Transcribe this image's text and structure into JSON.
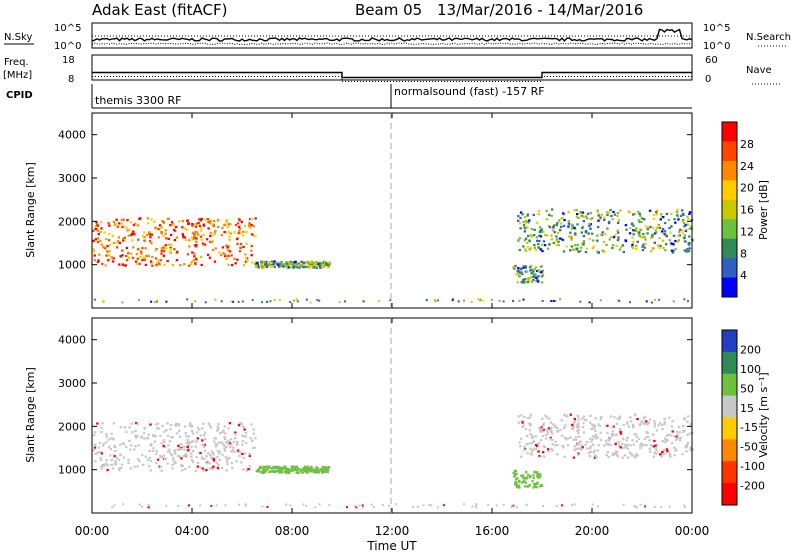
{
  "header": {
    "station": "Adak East (fitACF)",
    "beam": "Beam 05",
    "dates": "13/Mar/2016 - 14/Mar/2016"
  },
  "noise_panel": {
    "left_label": "N.Sky",
    "right_label": "N.Search",
    "y_top_tick": "10^5",
    "y_bottom_tick": "10^0"
  },
  "freq_panel": {
    "left_label_line1": "Freq.",
    "left_label_line2": "[MHz]",
    "right_label": "Nave",
    "left_ticks": [
      "18",
      "8"
    ],
    "right_ticks": [
      "60",
      "0"
    ]
  },
  "cpid_panel": {
    "label": "CPID",
    "mode1": "themis 3300 RF",
    "mode2": "normalsound (fast) -157 RF"
  },
  "power_panel": {
    "ylabel": "Slant Range [km]",
    "colorbar_label": "Power [dB]",
    "colorbar_ticks": [
      "28",
      "24",
      "20",
      "16",
      "12",
      "8",
      "4"
    ],
    "colorbar_colors": [
      "#ff0000",
      "#ff4400",
      "#ff8800",
      "#ffcc00",
      "#c8c800",
      "#70c040",
      "#2e8b57",
      "#3060c0",
      "#0000ff"
    ]
  },
  "velocity_panel": {
    "ylabel": "Slant Range [km]",
    "colorbar_label": "Velocity [m s⁻¹]",
    "colorbar_ticks": [
      "200",
      "100",
      "50",
      "15",
      "-15",
      "-50",
      "-100",
      "-200"
    ],
    "colorbar_colors": [
      "#2040c0",
      "#2e8b57",
      "#70c040",
      "#c8c8c8",
      "#ffcc00",
      "#ff8800",
      "#ff3300",
      "#ff0000"
    ]
  },
  "xaxis": {
    "ticks": [
      "00:00",
      "04:00",
      "08:00",
      "12:00",
      "16:00",
      "20:00",
      "00:00"
    ],
    "label": "Time UT"
  },
  "chart_data": [
    {
      "type": "heatmap",
      "title": "Adak East (fitACF)",
      "subtitle": "Beam 05 13/Mar/2016 - 14/Mar/2016",
      "xlabel": "Time UT",
      "ylabel": "Slant Range [km]",
      "x_ticks": [
        "00:00",
        "04:00",
        "08:00",
        "12:00",
        "16:00",
        "20:00",
        "00:00"
      ],
      "y_ticks": [
        1000,
        2000,
        3000,
        4000
      ],
      "ylim": [
        0,
        4500
      ],
      "colorbar": "Power [dB]",
      "scatter_regions": [
        {
          "t_start": 0.0,
          "t_end": 6.5,
          "range_low": 1000,
          "range_high": 2100,
          "power": 20
        },
        {
          "t_start": 6.5,
          "t_end": 9.5,
          "range_low": 950,
          "range_high": 1100,
          "power": 8
        },
        {
          "t_start": 16.8,
          "t_end": 18.0,
          "range_low": 600,
          "range_high": 1000,
          "power": 8
        },
        {
          "t_start": 17.0,
          "t_end": 24.0,
          "range_low": 1300,
          "range_high": 2300,
          "power": 10
        }
      ]
    },
    {
      "type": "heatmap",
      "xlabel": "Time UT",
      "ylabel": "Slant Range [km]",
      "x_ticks": [
        "00:00",
        "04:00",
        "08:00",
        "12:00",
        "16:00",
        "20:00",
        "00:00"
      ],
      "y_ticks": [
        1000,
        2000,
        3000,
        4000
      ],
      "ylim": [
        0,
        4500
      ],
      "colorbar": "Velocity [m s⁻¹]",
      "scatter_regions": [
        {
          "t_start": 0.0,
          "t_end": 6.5,
          "range_low": 1000,
          "range_high": 2100,
          "velocity": 0
        },
        {
          "t_start": 6.5,
          "t_end": 9.5,
          "range_low": 950,
          "range_high": 1100,
          "velocity": 50
        },
        {
          "t_start": 16.8,
          "t_end": 18.0,
          "range_low": 600,
          "range_high": 1000,
          "velocity": 50
        },
        {
          "t_start": 17.0,
          "t_end": 24.0,
          "range_low": 1300,
          "range_high": 2300,
          "velocity": 0
        }
      ]
    },
    {
      "type": "line",
      "xlabel": "Time UT",
      "ylabel": "Freq. [MHz]",
      "x": [
        0,
        10,
        10,
        18,
        18,
        24
      ],
      "y": [
        11,
        11,
        9,
        9,
        11,
        11
      ],
      "ylim": [
        8,
        18
      ]
    }
  ]
}
